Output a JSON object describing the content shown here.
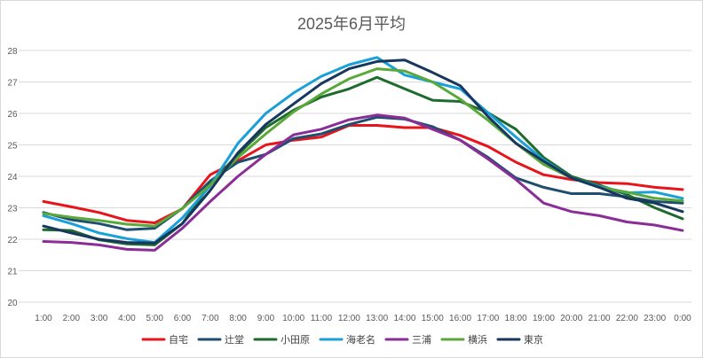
{
  "chart_data": {
    "type": "line",
    "title": "2025年6月平均",
    "categories": [
      "1:00",
      "2:00",
      "3:00",
      "4:00",
      "5:00",
      "6:00",
      "7:00",
      "8:00",
      "9:00",
      "10:00",
      "11:00",
      "12:00",
      "13:00",
      "14:00",
      "15:00",
      "16:00",
      "17:00",
      "18:00",
      "19:00",
      "20:00",
      "21:00",
      "22:00",
      "23:00",
      "0:00"
    ],
    "ylim": [
      20,
      28
    ],
    "yticks": [
      "20",
      "21",
      "22",
      "23",
      "24",
      "25",
      "26",
      "27",
      "28"
    ],
    "grid": true,
    "legend_position": "bottom",
    "series": [
      {
        "name": "自宅",
        "color": "#e8141c",
        "values": [
          23.2,
          23.03,
          22.85,
          22.6,
          22.52,
          22.97,
          24.05,
          24.5,
          25.0,
          25.15,
          25.25,
          25.62,
          25.62,
          25.55,
          25.55,
          25.3,
          24.95,
          24.45,
          24.05,
          23.9,
          23.8,
          23.77,
          23.65,
          23.58
        ]
      },
      {
        "name": "辻堂",
        "color": "#1f4e6e",
        "values": [
          22.85,
          22.62,
          22.5,
          22.3,
          22.35,
          22.98,
          23.85,
          24.45,
          24.7,
          25.2,
          25.35,
          25.65,
          25.88,
          25.82,
          25.58,
          25.15,
          24.6,
          23.95,
          23.65,
          23.45,
          23.45,
          23.35,
          23.2,
          23.15
        ]
      },
      {
        "name": "小田原",
        "color": "#1e6b2e",
        "values": [
          22.3,
          22.28,
          21.98,
          21.85,
          21.82,
          22.5,
          23.75,
          24.7,
          25.55,
          26.1,
          26.52,
          26.78,
          27.15,
          26.78,
          26.42,
          26.38,
          26.02,
          25.5,
          24.6,
          24.0,
          23.72,
          23.42,
          23.0,
          22.65
        ]
      },
      {
        "name": "海老名",
        "color": "#1aa0d8",
        "values": [
          22.75,
          22.5,
          22.2,
          22.02,
          21.9,
          22.68,
          23.7,
          25.05,
          26.0,
          26.65,
          27.18,
          27.55,
          27.78,
          27.22,
          27.0,
          26.78,
          26.02,
          25.25,
          24.52,
          23.95,
          23.68,
          23.48,
          23.5,
          23.3
        ]
      },
      {
        "name": "三浦",
        "color": "#8b2d96",
        "values": [
          21.93,
          21.9,
          21.82,
          21.68,
          21.65,
          22.35,
          23.2,
          24.0,
          24.7,
          25.32,
          25.5,
          25.8,
          25.95,
          25.85,
          25.5,
          25.15,
          24.55,
          23.9,
          23.15,
          22.88,
          22.75,
          22.55,
          22.45,
          22.28
        ]
      },
      {
        "name": "横浜",
        "color": "#5aa83a",
        "values": [
          22.82,
          22.7,
          22.6,
          22.48,
          22.42,
          22.98,
          23.72,
          24.6,
          25.35,
          26.05,
          26.62,
          27.1,
          27.42,
          27.35,
          27.0,
          26.45,
          25.78,
          25.05,
          24.38,
          23.95,
          23.65,
          23.5,
          23.3,
          23.22
        ]
      },
      {
        "name": "東京",
        "color": "#17375e",
        "values": [
          22.42,
          22.2,
          22.0,
          21.9,
          21.88,
          22.5,
          23.55,
          24.75,
          25.65,
          26.3,
          26.95,
          27.42,
          27.65,
          27.7,
          27.3,
          26.88,
          25.9,
          25.05,
          24.48,
          23.95,
          23.65,
          23.3,
          23.15,
          22.88
        ]
      }
    ]
  }
}
